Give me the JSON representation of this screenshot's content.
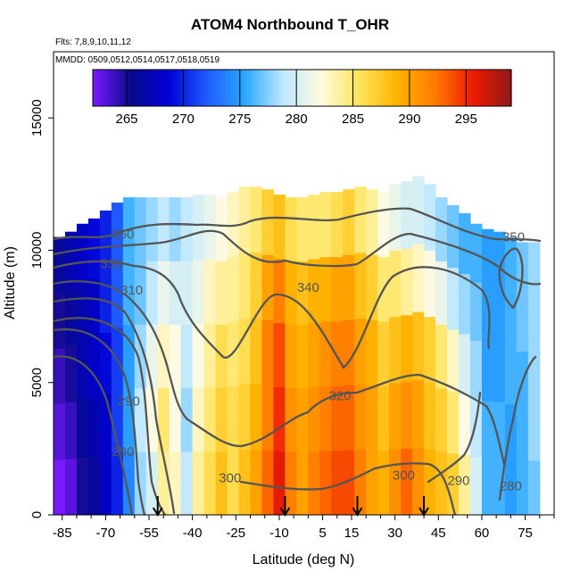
{
  "chart_data": {
    "type": "heatmap",
    "title": "ATOM4 Northbound T_OHR",
    "subtitle_flights": "Flts: 7,8,9,10,11,12",
    "subtitle_dates": "MMDD: 0509,0512,0514,0517,0518,0519",
    "xlabel": "Latitude (deg N)",
    "ylabel": "Altitude (m)",
    "xlim": [
      -88,
      85
    ],
    "ylim": [
      0,
      17500
    ],
    "x_ticks": [
      -85,
      -70,
      -55,
      -40,
      -25,
      -10,
      5,
      15,
      30,
      45,
      60,
      75
    ],
    "y_ticks": [
      0,
      5000,
      10000,
      15000
    ],
    "colorbar": {
      "ticks": [
        265,
        270,
        275,
        280,
        285,
        290,
        295
      ],
      "range": [
        262,
        299
      ],
      "colors": [
        "#7a1aff",
        "#0a0a8c",
        "#0000d6",
        "#1f5cff",
        "#2aa8ff",
        "#bfe8ff",
        "#fffbe0",
        "#ffe45c",
        "#ffb300",
        "#ff7a00",
        "#ef1a00",
        "#8f1a1a"
      ]
    },
    "columns": [
      {
        "lat": -86,
        "top": 10500,
        "t": [
          262,
          263,
          264,
          265,
          266
        ]
      },
      {
        "lat": -82,
        "top": 10700,
        "t": [
          263,
          264,
          265,
          266,
          267
        ]
      },
      {
        "lat": -78,
        "top": 11000,
        "t": [
          265,
          266,
          267,
          267,
          268
        ]
      },
      {
        "lat": -74,
        "top": 11200,
        "t": [
          266,
          267,
          268,
          268,
          269
        ]
      },
      {
        "lat": -70,
        "top": 11500,
        "t": [
          268,
          268,
          269,
          270,
          270
        ]
      },
      {
        "lat": -66,
        "top": 11800,
        "t": [
          270,
          271,
          271,
          272,
          272
        ]
      },
      {
        "lat": -62,
        "top": 12000,
        "t": [
          274,
          275,
          275,
          276,
          276
        ]
      },
      {
        "lat": -58,
        "top": 12000,
        "t": [
          278,
          279,
          278,
          277,
          277
        ]
      },
      {
        "lat": -54,
        "top": 12000,
        "t": [
          280,
          282,
          281,
          279,
          278
        ]
      },
      {
        "lat": -50,
        "top": 12000,
        "t": [
          284,
          285,
          283,
          281,
          279
        ]
      },
      {
        "lat": -46,
        "top": 12000,
        "t": [
          283,
          282,
          282,
          280,
          278
        ]
      },
      {
        "lat": -42,
        "top": 12000,
        "t": [
          279,
          278,
          279,
          280,
          279
        ]
      },
      {
        "lat": -38,
        "top": 12100,
        "t": [
          284,
          283,
          282,
          281,
          280
        ]
      },
      {
        "lat": -34,
        "top": 12100,
        "t": [
          286,
          285,
          284,
          283,
          281
        ]
      },
      {
        "lat": -30,
        "top": 12000,
        "t": [
          288,
          287,
          286,
          284,
          282
        ]
      },
      {
        "lat": -26,
        "top": 12200,
        "t": [
          286,
          286,
          285,
          284,
          283
        ]
      },
      {
        "lat": -22,
        "top": 12400,
        "t": [
          288,
          287,
          286,
          285,
          284
        ]
      },
      {
        "lat": -18,
        "top": 12400,
        "t": [
          290,
          289,
          288,
          287,
          285
        ]
      },
      {
        "lat": -14,
        "top": 12300,
        "t": [
          293,
          292,
          292,
          290,
          287
        ]
      },
      {
        "lat": -10,
        "top": 12100,
        "t": [
          296,
          295,
          294,
          292,
          288
        ]
      },
      {
        "lat": -6,
        "top": 12000,
        "t": [
          292,
          291,
          290,
          289,
          286
        ]
      },
      {
        "lat": -2,
        "top": 12000,
        "t": [
          290,
          290,
          289,
          288,
          285
        ]
      },
      {
        "lat": 2,
        "top": 12100,
        "t": [
          292,
          291,
          290,
          289,
          285
        ]
      },
      {
        "lat": 6,
        "top": 12200,
        "t": [
          293,
          292,
          291,
          289,
          285
        ]
      },
      {
        "lat": 10,
        "top": 12200,
        "t": [
          294,
          293,
          292,
          290,
          286
        ]
      },
      {
        "lat": 14,
        "top": 12300,
        "t": [
          294,
          293,
          292,
          290,
          287
        ]
      },
      {
        "lat": 18,
        "top": 12400,
        "t": [
          292,
          291,
          290,
          288,
          285
        ]
      },
      {
        "lat": 22,
        "top": 12300,
        "t": [
          290,
          290,
          289,
          287,
          284
        ]
      },
      {
        "lat": 26,
        "top": 12200,
        "t": [
          289,
          288,
          287,
          285,
          282
        ]
      },
      {
        "lat": 30,
        "top": 12500,
        "t": [
          291,
          290,
          288,
          285,
          281
        ]
      },
      {
        "lat": 34,
        "top": 12600,
        "t": [
          293,
          291,
          289,
          284,
          280
        ]
      },
      {
        "lat": 38,
        "top": 12800,
        "t": [
          291,
          290,
          288,
          283,
          280
        ]
      },
      {
        "lat": 42,
        "top": 12500,
        "t": [
          289,
          288,
          287,
          282,
          279
        ]
      },
      {
        "lat": 46,
        "top": 12000,
        "t": [
          288,
          287,
          285,
          281,
          278
        ]
      },
      {
        "lat": 50,
        "top": 11700,
        "t": [
          287,
          285,
          283,
          279,
          277
        ]
      },
      {
        "lat": 54,
        "top": 11400,
        "t": [
          284,
          282,
          280,
          278,
          276
        ]
      },
      {
        "lat": 58,
        "top": 11000,
        "t": [
          280,
          279,
          278,
          277,
          276
        ]
      },
      {
        "lat": 62,
        "top": 10800,
        "t": [
          276,
          276,
          275,
          275,
          275
        ]
      },
      {
        "lat": 66,
        "top": 10700,
        "t": [
          276,
          276,
          275,
          275,
          275
        ]
      },
      {
        "lat": 70,
        "top": 10500,
        "t": [
          275,
          275,
          276,
          276,
          276
        ]
      },
      {
        "lat": 74,
        "top": 10300,
        "t": [
          276,
          276,
          276,
          277,
          277
        ]
      },
      {
        "lat": 78,
        "top": 10300,
        "t": [
          277,
          278,
          278,
          278,
          278
        ]
      }
    ],
    "contour_labels": [
      {
        "text": "350",
        "lat": -64,
        "alt": 10600
      },
      {
        "text": "330",
        "lat": -68,
        "alt": 9500
      },
      {
        "text": "310",
        "lat": -61,
        "alt": 8500
      },
      {
        "text": "290",
        "lat": -62,
        "alt": 4300
      },
      {
        "text": "280",
        "lat": -64,
        "alt": 2400
      },
      {
        "text": "300",
        "lat": -27,
        "alt": 1400
      },
      {
        "text": "340",
        "lat": 0,
        "alt": 8600
      },
      {
        "text": "320",
        "lat": 11,
        "alt": 4500
      },
      {
        "text": "300",
        "lat": 33,
        "alt": 1500
      },
      {
        "text": "290",
        "lat": 52,
        "alt": 1300
      },
      {
        "text": "280",
        "lat": 70,
        "alt": 1100
      },
      {
        "text": "350",
        "lat": 71,
        "alt": 10500
      }
    ],
    "flight_markers_lat": [
      -52,
      -8,
      17,
      40
    ]
  }
}
